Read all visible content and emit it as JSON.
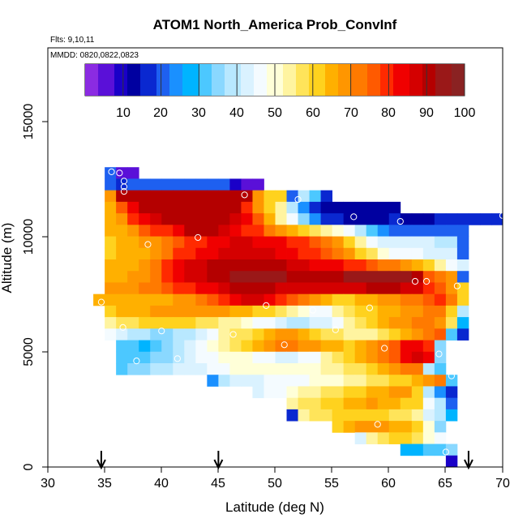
{
  "chart_data": {
    "type": "heatmap",
    "title": "ATOM1 North_America Prob_ConvInf",
    "subtitle_flights": "Flts: 9,10,11",
    "subtitle_dates": "MMDD: 0820,0822,0823",
    "xlabel": "Latitude (deg N)",
    "ylabel": "Altitude (m)",
    "xlim": [
      30,
      70
    ],
    "ylim": [
      0,
      18000
    ],
    "x_ticks": [
      30,
      35,
      40,
      45,
      50,
      55,
      60,
      65,
      70
    ],
    "y_ticks": [
      0,
      5000,
      10000,
      15000
    ],
    "y_tick_labels": [
      "0",
      "5000",
      "10000",
      "15000"
    ],
    "bin": {
      "lat": 1,
      "alt": 500
    },
    "colorbar": {
      "range": [
        0,
        100
      ],
      "ticks": [
        10,
        20,
        30,
        40,
        50,
        60,
        70,
        80,
        90,
        100
      ],
      "colors": [
        "#8b2be2",
        "#5a10d8",
        "#1a00c8",
        "#0000a0",
        "#0a28d0",
        "#1e60f0",
        "#1a90ff",
        "#00b4ff",
        "#4cc8ff",
        "#8ad8ff",
        "#b8e8ff",
        "#daf2ff",
        "#f4fbff",
        "#ffffd8",
        "#fff4a0",
        "#ffe45a",
        "#ffd21e",
        "#ffb000",
        "#ff9600",
        "#ff7a00",
        "#ff5a00",
        "#ff2a00",
        "#f00000",
        "#d40000",
        "#b40000",
        "#9a1818",
        "#8a2222"
      ]
    },
    "arrows_lat": [
      34.7,
      45,
      67
    ],
    "rows": [
      {
        "alt": 12750,
        "lat_start": 35,
        "values": [
          20,
          5,
          5
        ]
      },
      {
        "alt": 12250,
        "lat_start": 35,
        "values": [
          22,
          18,
          20,
          22,
          22,
          22,
          22,
          22,
          22,
          22,
          20,
          10,
          5,
          5
        ]
      },
      {
        "alt": 11750,
        "lat_start": 35,
        "values": [
          70,
          92,
          92,
          90,
          90,
          90,
          90,
          90,
          90,
          90,
          90,
          90,
          92,
          70,
          60,
          62,
          22,
          38,
          30,
          15
        ]
      },
      {
        "alt": 11250,
        "lat_start": 35,
        "values": [
          66,
          75,
          82,
          90,
          92,
          92,
          92,
          92,
          92,
          92,
          92,
          92,
          78,
          70,
          62,
          55,
          40,
          25,
          15,
          12,
          12,
          12,
          12,
          12,
          12,
          12
        ]
      },
      {
        "alt": 10750,
        "lat_start": 35,
        "values": [
          64,
          68,
          78,
          85,
          88,
          90,
          92,
          92,
          92,
          92,
          90,
          88,
          82,
          75,
          65,
          55,
          45,
          35,
          25,
          18,
          15,
          12,
          12,
          12,
          12,
          15,
          14,
          14,
          14,
          15,
          15,
          15,
          15,
          15,
          15
        ]
      },
      {
        "alt": 10250,
        "lat_start": 35,
        "values": [
          63,
          66,
          70,
          75,
          78,
          80,
          85,
          90,
          92,
          90,
          88,
          84,
          80,
          78,
          72,
          68,
          64,
          62,
          58,
          55,
          50,
          45,
          40,
          32,
          24,
          22,
          20,
          22,
          20,
          20,
          22,
          20
        ]
      },
      {
        "alt": 9750,
        "lat_start": 35,
        "values": [
          62,
          64,
          66,
          68,
          70,
          72,
          75,
          78,
          80,
          82,
          84,
          86,
          86,
          85,
          84,
          82,
          80,
          78,
          76,
          72,
          68,
          62,
          55,
          48,
          44,
          42,
          42,
          42,
          42,
          40,
          38,
          22
        ]
      },
      {
        "alt": 9250,
        "lat_start": 35,
        "values": [
          62,
          63,
          64,
          66,
          70,
          74,
          78,
          80,
          82,
          84,
          86,
          88,
          88,
          88,
          86,
          84,
          82,
          80,
          78,
          76,
          72,
          68,
          62,
          56,
          50,
          48,
          46,
          46,
          44,
          44,
          42,
          20
        ]
      },
      {
        "alt": 8750,
        "lat_start": 35,
        "values": [
          64,
          64,
          66,
          68,
          72,
          78,
          82,
          86,
          88,
          90,
          92,
          92,
          92,
          92,
          92,
          90,
          88,
          86,
          85,
          84,
          82,
          80,
          78,
          76,
          74,
          72,
          68,
          64,
          60,
          52,
          46,
          44
        ]
      },
      {
        "alt": 8250,
        "lat_start": 35,
        "values": [
          66,
          66,
          68,
          70,
          74,
          78,
          82,
          86,
          88,
          90,
          92,
          93,
          93,
          93,
          93,
          93,
          92,
          92,
          92,
          92,
          92,
          93,
          93,
          95,
          95,
          95,
          94,
          92,
          75,
          72,
          68,
          20
        ]
      },
      {
        "alt": 7750,
        "lat_start": 35,
        "values": [
          68,
          68,
          70,
          72,
          74,
          76,
          78,
          80,
          82,
          85,
          88,
          90,
          90,
          90,
          90,
          88,
          86,
          86,
          86,
          86,
          86,
          86,
          88,
          90,
          90,
          90,
          88,
          86,
          80,
          76,
          68,
          62
        ]
      },
      {
        "alt": 7250,
        "lat_start": 34,
        "values": [
          66,
          66,
          66,
          66,
          66,
          66,
          66,
          68,
          70,
          72,
          76,
          80,
          84,
          86,
          86,
          84,
          80,
          76,
          72,
          68,
          65,
          62,
          62,
          64,
          66,
          68,
          70,
          72,
          74,
          76,
          78,
          72,
          62
        ]
      },
      {
        "alt": 6750,
        "lat_start": 35,
        "values": [
          62,
          64,
          64,
          66,
          68,
          68,
          70,
          70,
          70,
          70,
          68,
          66,
          64,
          62,
          60,
          56,
          52,
          50,
          48,
          48,
          52,
          56,
          60,
          62,
          64,
          66,
          68,
          70,
          72,
          74,
          62,
          38
        ]
      },
      {
        "alt": 6250,
        "lat_start": 35,
        "values": [
          52,
          56,
          58,
          60,
          62,
          62,
          62,
          60,
          58,
          56,
          54,
          52,
          50,
          48,
          46,
          44,
          40,
          38,
          42,
          44,
          48,
          52,
          56,
          60,
          64,
          68,
          70,
          72,
          74,
          70,
          58,
          28
        ]
      },
      {
        "alt": 5750,
        "lat_start": 35,
        "values": [
          48,
          44,
          40,
          38,
          36,
          36,
          38,
          40,
          44,
          48,
          52,
          56,
          58,
          62,
          66,
          68,
          68,
          66,
          62,
          58,
          56,
          54,
          52,
          54,
          58,
          62,
          66,
          70,
          74,
          76,
          30,
          15
        ]
      },
      {
        "alt": 5250,
        "lat_start": 36,
        "values": [
          32,
          30,
          28,
          30,
          34,
          38,
          42,
          46,
          50,
          54,
          58,
          62,
          66,
          70,
          72,
          72,
          70,
          68,
          66,
          64,
          62,
          64,
          68,
          72,
          76,
          82,
          84,
          80,
          35
        ]
      },
      {
        "alt": 4750,
        "lat_start": 36,
        "values": [
          30,
          30,
          32,
          34,
          36,
          40,
          44,
          46,
          48,
          50,
          50,
          50,
          48,
          46,
          44,
          44,
          46,
          48,
          52,
          56,
          60,
          64,
          68,
          72,
          76,
          82,
          88,
          84,
          35
        ]
      },
      {
        "alt": 4250,
        "lat_start": 36,
        "values": [
          32,
          34,
          36,
          38,
          40,
          42,
          44,
          44,
          46,
          48,
          50,
          50,
          50,
          50,
          50,
          50,
          50,
          50,
          52,
          54,
          56,
          58,
          62,
          66,
          70,
          72,
          72,
          38,
          32
        ]
      },
      {
        "alt": 3750,
        "lat_start": 44,
        "values": [
          24,
          40,
          42,
          44,
          44,
          46,
          46,
          48,
          48,
          50,
          50,
          50,
          52,
          54,
          56,
          58,
          60,
          62,
          66,
          70,
          72,
          30
        ]
      },
      {
        "alt": 3250,
        "lat_start": 48,
        "values": [
          44,
          46,
          48,
          50,
          52,
          54,
          56,
          58,
          60,
          62,
          64,
          66,
          68,
          70,
          62,
          40,
          24,
          18
        ]
      },
      {
        "alt": 2750,
        "lat_start": 51,
        "values": [
          52,
          56,
          58,
          60,
          62,
          64,
          66,
          68,
          66,
          64,
          62,
          60,
          48,
          38,
          20
        ]
      },
      {
        "alt": 2250,
        "lat_start": 51,
        "values": [
          16,
          54,
          56,
          58,
          60,
          62,
          62,
          62,
          60,
          58,
          56,
          52,
          44,
          38,
          28
        ]
      },
      {
        "alt": 1750,
        "lat_start": 55,
        "values": [
          62,
          66,
          68,
          70,
          70,
          66,
          64,
          60,
          50,
          36
        ]
      },
      {
        "alt": 1250,
        "lat_start": 57,
        "values": [
          42,
          52,
          58,
          62,
          62,
          56,
          50,
          46
        ]
      },
      {
        "alt": 750,
        "lat_start": 61,
        "values": [
          26,
          28,
          30,
          32,
          34
        ]
      },
      {
        "alt": 250,
        "lat_start": 65,
        "values": [
          8
        ]
      }
    ],
    "points": [
      {
        "lat": 35.6,
        "alt": 12800
      },
      {
        "lat": 36.3,
        "alt": 12750
      },
      {
        "lat": 36.7,
        "alt": 12400
      },
      {
        "lat": 36.7,
        "alt": 12150
      },
      {
        "lat": 36.7,
        "alt": 11950
      },
      {
        "lat": 47.3,
        "alt": 11800
      },
      {
        "lat": 52.0,
        "alt": 11600
      },
      {
        "lat": 56.9,
        "alt": 10850
      },
      {
        "lat": 61.0,
        "alt": 10650
      },
      {
        "lat": 70.0,
        "alt": 10900
      },
      {
        "lat": 43.2,
        "alt": 9950
      },
      {
        "lat": 38.8,
        "alt": 9650
      },
      {
        "lat": 62.3,
        "alt": 8050
      },
      {
        "lat": 63.3,
        "alt": 8050
      },
      {
        "lat": 66.0,
        "alt": 7850
      },
      {
        "lat": 34.7,
        "alt": 7150
      },
      {
        "lat": 49.2,
        "alt": 7000
      },
      {
        "lat": 53.3,
        "alt": 6800
      },
      {
        "lat": 58.3,
        "alt": 6900
      },
      {
        "lat": 36.6,
        "alt": 6050
      },
      {
        "lat": 40.0,
        "alt": 5900
      },
      {
        "lat": 46.3,
        "alt": 5750
      },
      {
        "lat": 55.3,
        "alt": 5950
      },
      {
        "lat": 50.8,
        "alt": 5300
      },
      {
        "lat": 59.6,
        "alt": 5150
      },
      {
        "lat": 41.4,
        "alt": 4700
      },
      {
        "lat": 37.8,
        "alt": 4600
      },
      {
        "lat": 64.4,
        "alt": 4900
      },
      {
        "lat": 65.5,
        "alt": 3950
      },
      {
        "lat": 59.0,
        "alt": 1850
      },
      {
        "lat": 65.0,
        "alt": 650
      }
    ]
  }
}
